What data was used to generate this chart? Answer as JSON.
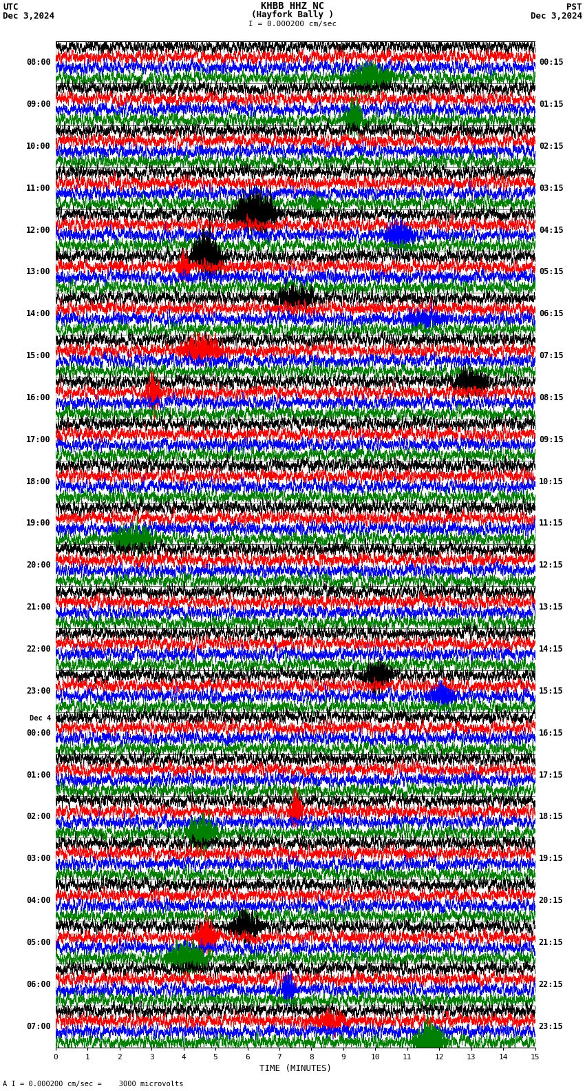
{
  "title_line1": "KHBB HHZ NC",
  "title_line2": "(Hayfork Bally )",
  "scale_text": "I = 0.000200 cm/sec",
  "bottom_scale_text": "A I = 0.000200 cm/sec =    3000 microvolts",
  "utc_label": "UTC",
  "utc_date": "Dec 3,2024",
  "pst_label": "PST",
  "pst_date": "Dec 3,2024",
  "xlabel": "TIME (MINUTES)",
  "left_labels": [
    {
      "label": "08:00",
      "row": 0
    },
    {
      "label": "09:00",
      "row": 1
    },
    {
      "label": "10:00",
      "row": 2
    },
    {
      "label": "11:00",
      "row": 3
    },
    {
      "label": "12:00",
      "row": 4
    },
    {
      "label": "13:00",
      "row": 5
    },
    {
      "label": "14:00",
      "row": 6
    },
    {
      "label": "15:00",
      "row": 7
    },
    {
      "label": "16:00",
      "row": 8
    },
    {
      "label": "17:00",
      "row": 9
    },
    {
      "label": "18:00",
      "row": 10
    },
    {
      "label": "19:00",
      "row": 11
    },
    {
      "label": "20:00",
      "row": 12
    },
    {
      "label": "21:00",
      "row": 13
    },
    {
      "label": "22:00",
      "row": 14
    },
    {
      "label": "23:00",
      "row": 15
    },
    {
      "label": "Dec 4",
      "row": 16,
      "sub": true
    },
    {
      "label": "00:00",
      "row": 16
    },
    {
      "label": "01:00",
      "row": 17
    },
    {
      "label": "02:00",
      "row": 18
    },
    {
      "label": "03:00",
      "row": 19
    },
    {
      "label": "04:00",
      "row": 20
    },
    {
      "label": "05:00",
      "row": 21
    },
    {
      "label": "06:00",
      "row": 22
    },
    {
      "label": "07:00",
      "row": 23
    }
  ],
  "right_labels": [
    {
      "label": "00:15",
      "row": 0
    },
    {
      "label": "01:15",
      "row": 1
    },
    {
      "label": "02:15",
      "row": 2
    },
    {
      "label": "03:15",
      "row": 3
    },
    {
      "label": "04:15",
      "row": 4
    },
    {
      "label": "05:15",
      "row": 5
    },
    {
      "label": "06:15",
      "row": 6
    },
    {
      "label": "07:15",
      "row": 7
    },
    {
      "label": "08:15",
      "row": 8
    },
    {
      "label": "09:15",
      "row": 9
    },
    {
      "label": "10:15",
      "row": 10
    },
    {
      "label": "11:15",
      "row": 11
    },
    {
      "label": "12:15",
      "row": 12
    },
    {
      "label": "13:15",
      "row": 13
    },
    {
      "label": "14:15",
      "row": 14
    },
    {
      "label": "15:15",
      "row": 15
    },
    {
      "label": "16:15",
      "row": 16
    },
    {
      "label": "17:15",
      "row": 17
    },
    {
      "label": "18:15",
      "row": 18
    },
    {
      "label": "19:15",
      "row": 19
    },
    {
      "label": "20:15",
      "row": 20
    },
    {
      "label": "21:15",
      "row": 21
    },
    {
      "label": "22:15",
      "row": 22
    },
    {
      "label": "23:15",
      "row": 23
    }
  ],
  "colors": [
    "black",
    "red",
    "blue",
    "green"
  ],
  "num_rows": 24,
  "traces_per_row": 4,
  "bg_color": "white",
  "xlim": [
    0,
    15
  ],
  "xticks": [
    0,
    1,
    2,
    3,
    4,
    5,
    6,
    7,
    8,
    9,
    10,
    11,
    12,
    13,
    14,
    15
  ],
  "figsize": [
    8.5,
    15.84
  ],
  "dpi": 100,
  "seed": 42,
  "trace_amplitude": 0.28,
  "trace_lw": 0.5,
  "grid_lw": 0.4,
  "grid_color": "#888888",
  "separator_lw": 0.8,
  "separator_color": "black"
}
